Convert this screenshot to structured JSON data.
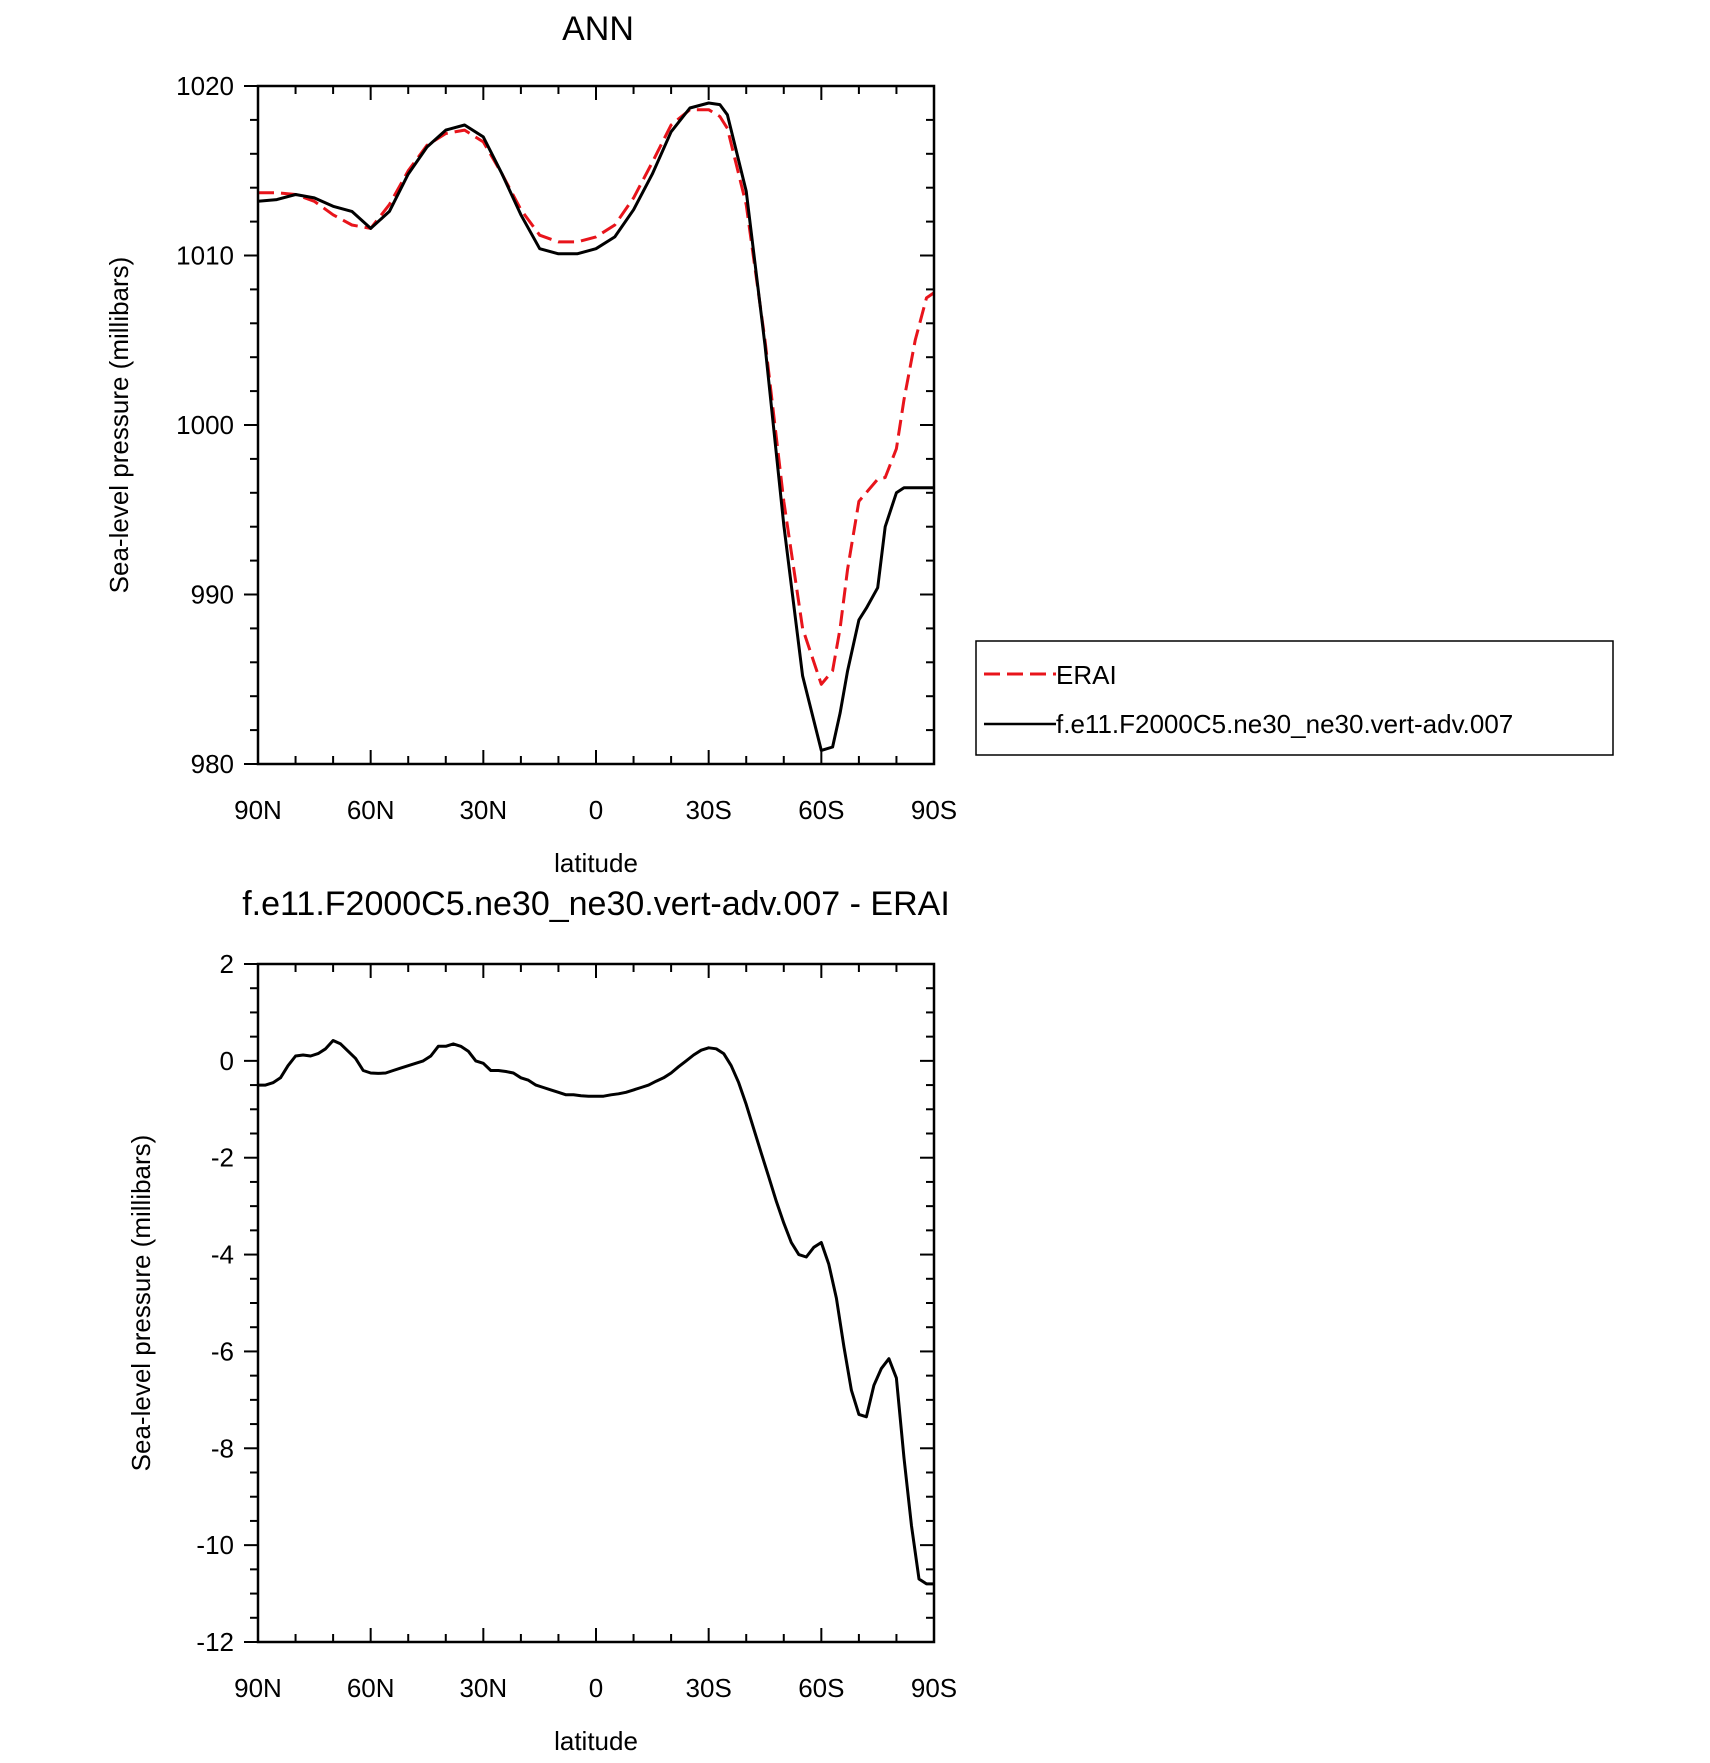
{
  "chart_data": [
    {
      "type": "line",
      "title": "ANN",
      "xlabel": "latitude",
      "ylabel": "Sea-level pressure (millibars)",
      "xlim": [
        90,
        -90
      ],
      "ylim": [
        980,
        1020
      ],
      "x_ticks": [
        {
          "value": 90,
          "label": "90N"
        },
        {
          "value": 60,
          "label": "60N"
        },
        {
          "value": 30,
          "label": "30N"
        },
        {
          "value": 0,
          "label": "0"
        },
        {
          "value": -30,
          "label": "30S"
        },
        {
          "value": -60,
          "label": "60S"
        },
        {
          "value": -90,
          "label": "90S"
        }
      ],
      "y_ticks": [
        {
          "value": 980,
          "label": "980"
        },
        {
          "value": 990,
          "label": "990"
        },
        {
          "value": 1000,
          "label": "1000"
        },
        {
          "value": 1010,
          "label": "1010"
        },
        {
          "value": 1020,
          "label": "1020"
        }
      ],
      "legend": {
        "placement": "right",
        "entries": [
          {
            "label": "ERAI",
            "series": 0
          },
          {
            "label": "f.e11.F2000C5.ne30_ne30.vert-adv.007",
            "series": 1
          }
        ]
      },
      "series": [
        {
          "name": "ERAI",
          "color": "#e8141b",
          "dash": "dashed",
          "x": [
            90,
            85,
            80,
            75,
            70,
            65,
            60,
            55,
            50,
            45,
            40,
            35,
            30,
            25,
            20,
            15,
            10,
            5,
            0,
            -5,
            -10,
            -15,
            -20,
            -25,
            -30,
            -33,
            -35,
            -40,
            -45,
            -50,
            -55,
            -60,
            -63,
            -65,
            -67,
            -70,
            -75,
            -77,
            -80,
            -82,
            -85,
            -88,
            -90
          ],
          "y": [
            1013.7,
            1013.7,
            1013.6,
            1013.2,
            1012.4,
            1011.8,
            1011.6,
            1013.0,
            1015.0,
            1016.5,
            1017.2,
            1017.4,
            1016.7,
            1014.8,
            1012.7,
            1011.2,
            1010.8,
            1010.8,
            1011.1,
            1011.8,
            1013.4,
            1015.5,
            1017.7,
            1018.6,
            1018.6,
            1018.2,
            1017.5,
            1013.0,
            1005.0,
            995.5,
            988.0,
            984.7,
            985.5,
            988.0,
            991.5,
            995.5,
            996.8,
            996.9,
            998.6,
            1001.5,
            1005.0,
            1007.5,
            1007.8
          ]
        },
        {
          "name": "f.e11.F2000C5.ne30_ne30.vert-adv.007",
          "color": "#000000",
          "dash": "solid",
          "x": [
            90,
            85,
            80,
            75,
            70,
            65,
            60,
            55,
            50,
            45,
            40,
            35,
            30,
            25,
            20,
            15,
            10,
            5,
            0,
            -5,
            -10,
            -15,
            -20,
            -25,
            -30,
            -33,
            -35,
            -40,
            -45,
            -50,
            -55,
            -60,
            -63,
            -65,
            -67,
            -70,
            -72,
            -75,
            -77,
            -80,
            -82,
            -85,
            -88,
            -90
          ],
          "y": [
            1013.2,
            1013.3,
            1013.6,
            1013.4,
            1012.9,
            1012.6,
            1011.6,
            1012.6,
            1014.8,
            1016.4,
            1017.4,
            1017.7,
            1017.0,
            1014.8,
            1012.4,
            1010.4,
            1010.1,
            1010.1,
            1010.4,
            1011.1,
            1012.7,
            1014.8,
            1017.3,
            1018.7,
            1019.0,
            1018.9,
            1018.3,
            1013.8,
            1004.7,
            994.1,
            985.2,
            980.8,
            981.0,
            983.0,
            985.5,
            988.5,
            989.2,
            990.4,
            994.0,
            996.0,
            996.3,
            996.3,
            996.3,
            996.3
          ]
        }
      ]
    },
    {
      "type": "line",
      "title": "f.e11.F2000C5.ne30_ne30.vert-adv.007 - ERAI",
      "xlabel": "latitude",
      "ylabel": "Sea-level pressure (millibars)",
      "xlim": [
        90,
        -90
      ],
      "ylim": [
        -12,
        2
      ],
      "x_ticks": [
        {
          "value": 90,
          "label": "90N"
        },
        {
          "value": 60,
          "label": "60N"
        },
        {
          "value": 30,
          "label": "30N"
        },
        {
          "value": 0,
          "label": "0"
        },
        {
          "value": -30,
          "label": "30S"
        },
        {
          "value": -60,
          "label": "60S"
        },
        {
          "value": -90,
          "label": "90S"
        }
      ],
      "y_ticks": [
        {
          "value": 2,
          "label": "2"
        },
        {
          "value": 0,
          "label": "0"
        },
        {
          "value": -2,
          "label": "-2"
        },
        {
          "value": -4,
          "label": "-4"
        },
        {
          "value": -6,
          "label": "-6"
        },
        {
          "value": -8,
          "label": "-8"
        },
        {
          "value": -10,
          "label": "-10"
        },
        {
          "value": -12,
          "label": "-12"
        }
      ],
      "series": [
        {
          "color": "#000000",
          "dash": "solid",
          "x": [
            90,
            88,
            86,
            84,
            82,
            80,
            78,
            76,
            74,
            72,
            70,
            68,
            66,
            64,
            62,
            60,
            58,
            56,
            54,
            52,
            50,
            48,
            46,
            44,
            42,
            40,
            38,
            36,
            34,
            32,
            30,
            28,
            26,
            24,
            22,
            20,
            18,
            16,
            14,
            12,
            10,
            8,
            6,
            4,
            2,
            0,
            -2,
            -4,
            -6,
            -8,
            -10,
            -12,
            -14,
            -16,
            -18,
            -20,
            -22,
            -24,
            -26,
            -28,
            -30,
            -32,
            -34,
            -36,
            -38,
            -40,
            -42,
            -44,
            -46,
            -48,
            -50,
            -52,
            -54,
            -56,
            -58,
            -60,
            -62,
            -64,
            -66,
            -68,
            -70,
            -72,
            -74,
            -76,
            -78,
            -80,
            -82,
            -84,
            -86,
            -88,
            -90
          ],
          "y": [
            -0.5,
            -0.5,
            -0.45,
            -0.35,
            -0.1,
            0.1,
            0.12,
            0.1,
            0.15,
            0.25,
            0.42,
            0.35,
            0.2,
            0.05,
            -0.2,
            -0.25,
            -0.26,
            -0.25,
            -0.2,
            -0.15,
            -0.1,
            -0.05,
            0.0,
            0.1,
            0.3,
            0.3,
            0.35,
            0.3,
            0.2,
            0.0,
            -0.05,
            -0.2,
            -0.2,
            -0.22,
            -0.25,
            -0.35,
            -0.4,
            -0.5,
            -0.55,
            -0.6,
            -0.65,
            -0.7,
            -0.7,
            -0.72,
            -0.73,
            -0.73,
            -0.73,
            -0.7,
            -0.68,
            -0.65,
            -0.6,
            -0.55,
            -0.5,
            -0.42,
            -0.35,
            -0.25,
            -0.12,
            0.0,
            0.12,
            0.22,
            0.27,
            0.25,
            0.15,
            -0.1,
            -0.45,
            -0.9,
            -1.4,
            -1.9,
            -2.4,
            -2.9,
            -3.35,
            -3.75,
            -4.0,
            -4.05,
            -3.85,
            -3.75,
            -4.2,
            -4.9,
            -5.9,
            -6.8,
            -7.3,
            -7.35,
            -6.7,
            -6.35,
            -6.15,
            -6.55,
            -8.2,
            -9.6,
            -10.7,
            -10.8,
            -10.8
          ]
        }
      ]
    }
  ]
}
